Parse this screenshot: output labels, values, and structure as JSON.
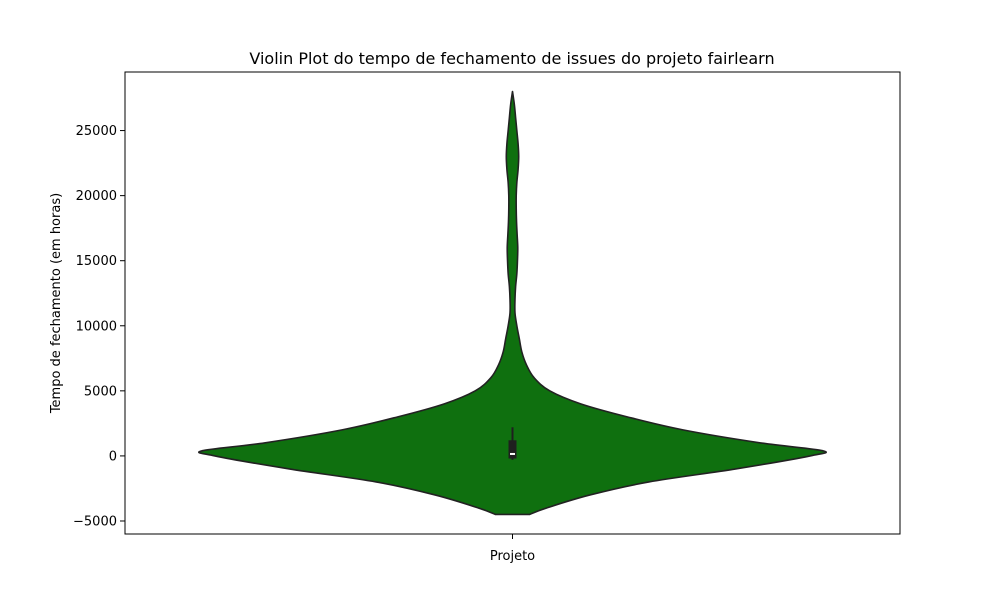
{
  "chart_data": {
    "type": "violin",
    "title": "Violin Plot do tempo de fechamento de issues do projeto fairlearn",
    "xlabel": "",
    "ylabel": "Tempo de fechamento (em horas)",
    "categories": [
      "Projeto"
    ],
    "ylim": [
      -6000,
      29500
    ],
    "yticks": [
      -5000,
      0,
      5000,
      10000,
      15000,
      20000,
      25000
    ],
    "ytick_labels": [
      "−5000",
      "0",
      "5000",
      "10000",
      "15000",
      "20000",
      "25000"
    ],
    "grid": false,
    "legend": "none",
    "colors": {
      "fill": "#0f700f",
      "outline": "#222222",
      "box": "#1f1f1f",
      "median": "#ffffff"
    },
    "violin_profile": {
      "y": [
        -4500,
        -4000,
        -3000,
        -2000,
        -1000,
        0,
        400,
        1000,
        2000,
        3000,
        4000,
        5000,
        6000,
        7000,
        8000,
        9000,
        10000,
        11000,
        12000,
        13000,
        14000,
        15000,
        16000,
        17000,
        18000,
        19000,
        20000,
        21000,
        22000,
        23000,
        24000,
        25000,
        26000,
        27000,
        28000
      ],
      "half_width_norm": [
        0.055,
        0.11,
        0.25,
        0.44,
        0.72,
        0.96,
        1.0,
        0.8,
        0.55,
        0.37,
        0.22,
        0.12,
        0.07,
        0.045,
        0.03,
        0.022,
        0.014,
        0.008,
        0.008,
        0.01,
        0.014,
        0.016,
        0.017,
        0.015,
        0.013,
        0.012,
        0.012,
        0.014,
        0.018,
        0.02,
        0.018,
        0.014,
        0.01,
        0.006,
        0.0
      ]
    },
    "box": {
      "q1": -200,
      "median": 150,
      "q3": 1200,
      "whisker_low": -300,
      "whisker_high": 2200
    }
  }
}
